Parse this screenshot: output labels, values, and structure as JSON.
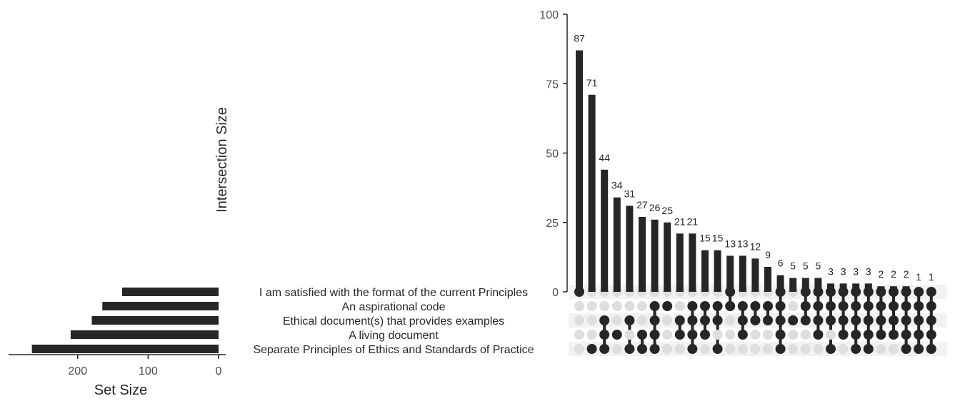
{
  "chart_data": {
    "type": "upset",
    "ylabel": "Intersection Size",
    "xlabel_sets": "Set Size",
    "ylim": [
      0,
      100
    ],
    "yticks": [
      0,
      25,
      50,
      75,
      100
    ],
    "set_size_ticks": [
      200,
      100,
      0
    ],
    "set_size_max": 290,
    "sets": [
      {
        "name": "I am satisfied with the format of the current Principles",
        "size": 137
      },
      {
        "name": "An aspirational code",
        "size": 165
      },
      {
        "name": "Ethical document(s) that provides examples",
        "size": 180
      },
      {
        "name": "A living document",
        "size": 210
      },
      {
        "name": "Separate Principles of Ethics and Standards of Practice",
        "size": 265
      }
    ],
    "intersections": [
      {
        "value": 87,
        "label": "87",
        "members": [
          0
        ]
      },
      {
        "value": 71,
        "label": "71",
        "members": [
          4
        ]
      },
      {
        "value": 44,
        "label": "44",
        "members": [
          2,
          3,
          4
        ]
      },
      {
        "value": 34,
        "label": "34",
        "members": [
          3
        ]
      },
      {
        "value": 31,
        "label": "31",
        "members": [
          2,
          4
        ]
      },
      {
        "value": 27,
        "label": "27",
        "members": [
          3,
          4
        ]
      },
      {
        "value": 26,
        "label": "26",
        "members": [
          1,
          2,
          3,
          4
        ]
      },
      {
        "value": 25,
        "label": "25",
        "members": [
          1
        ]
      },
      {
        "value": 21,
        "label": "21",
        "members": [
          2,
          3
        ]
      },
      {
        "value": 21,
        "label": "21",
        "members": [
          1,
          2,
          3,
          4
        ]
      },
      {
        "value": 15,
        "label": "15",
        "members": [
          1,
          2,
          3
        ]
      },
      {
        "value": 15,
        "label": "15",
        "members": [
          1,
          2,
          4
        ]
      },
      {
        "value": 13,
        "label": "13",
        "members": [
          0,
          1
        ]
      },
      {
        "value": 13,
        "label": "13",
        "members": [
          1,
          2,
          3
        ]
      },
      {
        "value": 12,
        "label": "12",
        "members": [
          1,
          2
        ]
      },
      {
        "value": 9,
        "label": "9",
        "members": [
          1,
          2
        ]
      },
      {
        "value": 6,
        "label": "6",
        "members": [
          0,
          1,
          2,
          3,
          4
        ]
      },
      {
        "value": 5,
        "label": "5",
        "members": [
          2
        ]
      },
      {
        "value": 5,
        "label": "5",
        "members": [
          0,
          1,
          2
        ]
      },
      {
        "value": 5,
        "label": "5",
        "members": [
          0,
          1,
          2,
          3
        ]
      },
      {
        "value": 3,
        "label": "3",
        "members": [
          0,
          1,
          2,
          4
        ]
      },
      {
        "value": 3,
        "label": "3",
        "members": [
          0,
          1,
          2,
          3
        ]
      },
      {
        "value": 3,
        "label": "3",
        "members": [
          0,
          1,
          2,
          3,
          4
        ]
      },
      {
        "value": 3,
        "label": "3",
        "members": [
          0,
          1,
          2,
          3,
          4
        ]
      },
      {
        "value": 2,
        "label": "2",
        "members": [
          0,
          1,
          2,
          3
        ]
      },
      {
        "value": 2,
        "label": "2",
        "members": [
          0,
          1,
          2,
          3
        ]
      },
      {
        "value": 2,
        "label": "2",
        "members": [
          0,
          1,
          2,
          3,
          4
        ]
      },
      {
        "value": 1,
        "label": "1",
        "members": [
          0,
          1,
          2,
          3,
          4
        ]
      },
      {
        "value": 1,
        "label": "1",
        "members": [
          0,
          1,
          2,
          3,
          4
        ]
      }
    ],
    "colors": {
      "bar": "#262626",
      "dot_on": "#262626",
      "dot_off": "#dedede",
      "stripe": "#f2f2f2",
      "axis": "#262626"
    }
  }
}
